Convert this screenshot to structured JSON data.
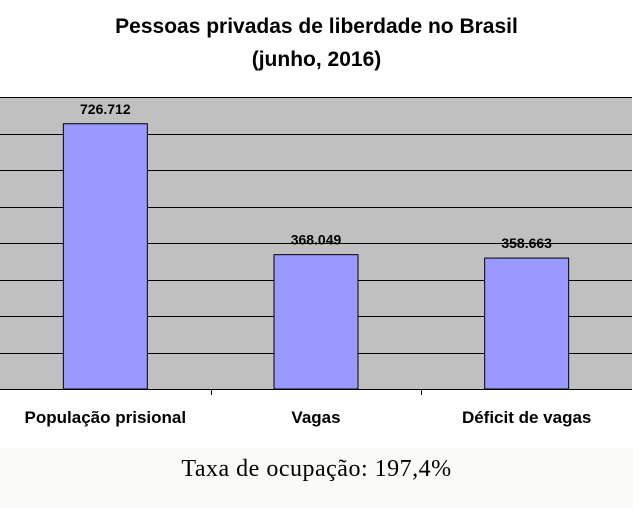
{
  "title_line1": "Pessoas privadas de liberdade no Brasil",
  "title_line2": "(junho, 2016)",
  "footer_note": "Taxa de ocupação: 197,4%",
  "colors": {
    "plot_bg": "#c0c0c0",
    "bar_fill": "#9999ff",
    "bar_stroke": "#000000",
    "grid": "#000000",
    "footer_bg": "#fafaf6"
  },
  "chart_data": {
    "type": "bar",
    "title": "Pessoas privadas de liberdade no Brasil (junho, 2016)",
    "categories": [
      "População prisional",
      "Vagas",
      "Déficit de vagas"
    ],
    "values": [
      726712,
      368049,
      358663
    ],
    "value_labels": [
      "726.712",
      "368.049",
      "358.663"
    ],
    "xlabel": "",
    "ylabel": "",
    "ylim": [
      0,
      800000
    ],
    "grid": true,
    "legend": "none"
  }
}
